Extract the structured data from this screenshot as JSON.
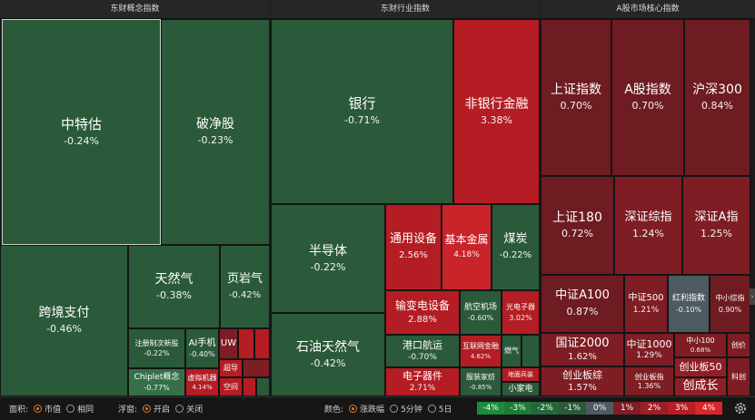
{
  "panels": [
    {
      "title": "东财概念指数"
    },
    {
      "title": "东财行业指数"
    },
    {
      "title": "A股市场核心指数"
    }
  ],
  "concept_tiles": [
    {
      "name": "中特估",
      "pct": "-0.24%"
    },
    {
      "name": "破净股",
      "pct": "-0.23%"
    },
    {
      "name": "跨境支付",
      "pct": "-0.46%"
    },
    {
      "name": "天然气",
      "pct": "-0.38%"
    },
    {
      "name": "页岩气",
      "pct": "-0.42%"
    },
    {
      "name": "注册制次新股",
      "pct": "-0.22%"
    },
    {
      "name": "AI手机",
      "pct": "-0.40%"
    },
    {
      "name": "UW",
      "pct": ""
    },
    {
      "name": "Chiplet概念",
      "pct": "-0.77%"
    },
    {
      "name": "虚拟机器",
      "pct": "4.14%"
    },
    {
      "name": "超导",
      "pct": ""
    },
    {
      "name": "空间",
      "pct": ""
    }
  ],
  "industry_tiles": [
    {
      "name": "银行",
      "pct": "-0.71%"
    },
    {
      "name": "非银行金融",
      "pct": "3.38%"
    },
    {
      "name": "半导体",
      "pct": "-0.22%"
    },
    {
      "name": "通用设备",
      "pct": "2.56%"
    },
    {
      "name": "基本金属",
      "pct": "4.18%"
    },
    {
      "name": "煤炭",
      "pct": "-0.22%"
    },
    {
      "name": "石油天然气",
      "pct": "-0.42%"
    },
    {
      "name": "输变电设备",
      "pct": "2.88%"
    },
    {
      "name": "航空机场",
      "pct": "-0.60%"
    },
    {
      "name": "光电子器",
      "pct": "3.02%"
    },
    {
      "name": "港口航运",
      "pct": "-0.70%"
    },
    {
      "name": "互联网金融",
      "pct": "4.62%"
    },
    {
      "name": "燃气",
      "pct": ""
    },
    {
      "name": "电子器件",
      "pct": "2.71%"
    },
    {
      "name": "服装家纺",
      "pct": "-0.85%"
    },
    {
      "name": "地面兵装",
      "pct": ""
    },
    {
      "name": "小家电",
      "pct": ""
    }
  ],
  "core_tiles": [
    {
      "name": "上证指数",
      "pct": "0.70%"
    },
    {
      "name": "A股指数",
      "pct": "0.70%"
    },
    {
      "name": "沪深300",
      "pct": "0.84%"
    },
    {
      "name": "上证180",
      "pct": "0.72%"
    },
    {
      "name": "深证综指",
      "pct": "1.24%"
    },
    {
      "name": "深证A指",
      "pct": "1.25%"
    },
    {
      "name": "中证A100",
      "pct": "0.87%"
    },
    {
      "name": "中证500",
      "pct": "1.21%"
    },
    {
      "name": "红利指数",
      "pct": "-0.10%"
    },
    {
      "name": "中小综指",
      "pct": "0.90%"
    },
    {
      "name": "国证2000",
      "pct": "1.62%"
    },
    {
      "name": "中证1000",
      "pct": "1.29%"
    },
    {
      "name": "中小100",
      "pct": "0.68%"
    },
    {
      "name": "创价",
      "pct": ""
    },
    {
      "name": "创业板综",
      "pct": "1.57%"
    },
    {
      "name": "创业板指",
      "pct": "1.36%"
    },
    {
      "name": "创业板50",
      "pct": ""
    },
    {
      "name": "科创",
      "pct": ""
    },
    {
      "name": "创成长",
      "pct": ""
    }
  ],
  "footer": {
    "area_label": "面积:",
    "area_opts": [
      "市值",
      "相同"
    ],
    "float_label": "浮窗:",
    "float_opts": [
      "开启",
      "关闭"
    ],
    "color_label": "颜色:",
    "color_opts": [
      "涨跌幅",
      "5分钟",
      "5日"
    ],
    "legend": [
      {
        "label": "-4%",
        "color": "#1a8c3a"
      },
      {
        "label": "-3%",
        "color": "#1f7a37"
      },
      {
        "label": "-2%",
        "color": "#23673a"
      },
      {
        "label": "-1%",
        "color": "#2b5a3b"
      },
      {
        "label": "0%",
        "color": "#4e5a61"
      },
      {
        "label": "1%",
        "color": "#7e1d24"
      },
      {
        "label": "2%",
        "color": "#9a1f26"
      },
      {
        "label": "3%",
        "color": "#b71f25"
      },
      {
        "label": "4%",
        "color": "#d8262b"
      }
    ]
  },
  "icons": {
    "settings": "gear-icon",
    "expand": "chevron-right-icon"
  }
}
